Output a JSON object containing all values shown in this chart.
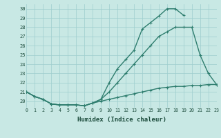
{
  "xlabel": "Humidex (Indice chaleur)",
  "x_values": [
    0,
    1,
    2,
    3,
    4,
    5,
    6,
    7,
    8,
    9,
    10,
    11,
    12,
    13,
    14,
    15,
    16,
    17,
    18,
    19,
    20,
    21,
    22,
    23
  ],
  "line1_y": [
    21.0,
    20.5,
    20.2,
    19.7,
    19.6,
    19.6,
    19.6,
    19.5,
    19.8,
    20.2,
    22.0,
    23.5,
    24.5,
    25.5,
    27.8,
    28.5,
    29.2,
    30.0,
    30.0,
    29.3,
    null,
    null,
    null,
    null
  ],
  "line2_y": [
    21.0,
    20.5,
    20.2,
    19.7,
    19.6,
    19.6,
    19.6,
    19.5,
    19.8,
    20.2,
    21.0,
    22.0,
    23.0,
    24.0,
    25.0,
    26.0,
    27.0,
    27.5,
    28.0,
    28.0,
    28.0,
    25.0,
    23.0,
    21.8
  ],
  "line3_y": [
    21.0,
    20.5,
    20.2,
    19.7,
    19.6,
    19.6,
    19.6,
    19.5,
    19.8,
    20.0,
    20.2,
    20.4,
    20.6,
    20.8,
    21.0,
    21.2,
    21.4,
    21.5,
    21.6,
    21.6,
    21.7,
    21.7,
    21.8,
    21.8
  ],
  "line_color": "#2e7d6e",
  "bg_color": "#c8e8e4",
  "grid_color": "#9ecece",
  "ylim": [
    19.3,
    30.5
  ],
  "xlim": [
    0,
    23
  ]
}
